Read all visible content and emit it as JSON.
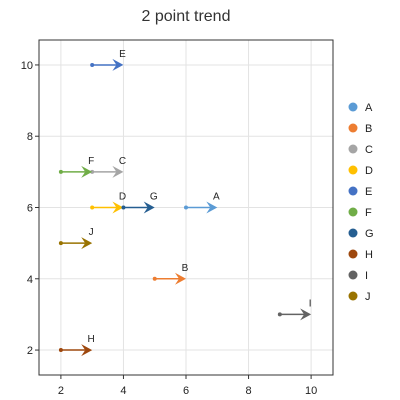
{
  "chart_data": {
    "type": "scatter",
    "title": "2 point trend",
    "xlabel": "",
    "ylabel": "",
    "xlim": [
      1.3,
      10.7
    ],
    "ylim": [
      1.3,
      10.7
    ],
    "xticks": [
      2,
      4,
      6,
      8,
      10
    ],
    "yticks": [
      2,
      4,
      6,
      8,
      10
    ],
    "grid": true,
    "legend_position": "right",
    "series": [
      {
        "name": "A",
        "color": "#5b9bd5",
        "x0": 6,
        "y0": 6,
        "x1": 7,
        "y1": 6
      },
      {
        "name": "B",
        "color": "#ed7d31",
        "x0": 5,
        "y0": 4,
        "x1": 6,
        "y1": 4
      },
      {
        "name": "C",
        "color": "#a5a5a5",
        "x0": 3,
        "y0": 7,
        "x1": 4,
        "y1": 7
      },
      {
        "name": "D",
        "color": "#ffc000",
        "x0": 3,
        "y0": 6,
        "x1": 4,
        "y1": 6
      },
      {
        "name": "E",
        "color": "#4472c4",
        "x0": 3,
        "y0": 10,
        "x1": 4,
        "y1": 10
      },
      {
        "name": "F",
        "color": "#70ad47",
        "x0": 2,
        "y0": 7,
        "x1": 3,
        "y1": 7
      },
      {
        "name": "G",
        "color": "#255e91",
        "x0": 4,
        "y0": 6,
        "x1": 5,
        "y1": 6
      },
      {
        "name": "H",
        "color": "#9e480e",
        "x0": 2,
        "y0": 2,
        "x1": 3,
        "y1": 2
      },
      {
        "name": "I",
        "color": "#636363",
        "x0": 9,
        "y0": 3,
        "x1": 10,
        "y1": 3
      },
      {
        "name": "J",
        "color": "#997300",
        "x0": 2,
        "y0": 5,
        "x1": 3,
        "y1": 5
      }
    ]
  }
}
